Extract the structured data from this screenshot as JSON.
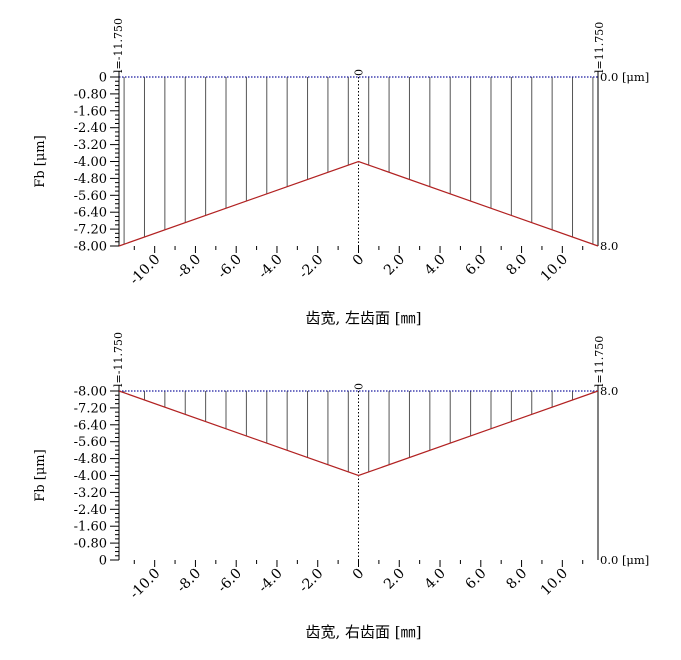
{
  "chart_data": [
    {
      "type": "line",
      "flank": "left",
      "xlabel": "齿宽, 左齿面 [㎜]",
      "ylabel": "Fb [μm]",
      "x_ticks": [
        -10.0,
        -8.0,
        -6.0,
        -4.0,
        -2.0,
        0.0,
        2.0,
        4.0,
        6.0,
        8.0,
        10.0
      ],
      "x_tick_labels": [
        "-10.0",
        "-8.0",
        "-6.0",
        "-4.0",
        "-2.0",
        "0",
        "2.0",
        "4.0",
        "6.0",
        "8.0",
        "10.0"
      ],
      "xlim": [
        -11.75,
        11.75
      ],
      "y_ticks": [
        0,
        -0.8,
        -1.6,
        -2.4,
        -3.2,
        -4.0,
        -4.8,
        -5.6,
        -6.4,
        -7.2,
        -8.0
      ],
      "y_tick_labels": [
        "0",
        "-0.80",
        "-1.60",
        "-2.40",
        "-3.20",
        "-4.00",
        "-4.80",
        "-5.60",
        "-6.40",
        "-7.20",
        "-8.00"
      ],
      "ylim": [
        -8.0,
        0
      ],
      "y_top": 0,
      "line": {
        "x": [
          -11.75,
          0,
          11.75
        ],
        "y": [
          -8.0,
          -4.0,
          -8.0
        ]
      },
      "hatch_x": [
        -11.5,
        -10.5,
        -9.5,
        -8.5,
        -7.5,
        -6.5,
        -5.5,
        -4.5,
        -3.5,
        -2.5,
        -1.5,
        -0.5,
        0.5,
        1.5,
        2.5,
        3.5,
        4.5,
        5.5,
        6.5,
        7.5,
        8.5,
        9.5,
        10.5,
        11.5
      ],
      "top_left_label": "l=-11.750",
      "top_right_label": "l=11.750",
      "center_marker": "0",
      "right_labels": [
        {
          "y": 0,
          "text": "0.0 [μm]"
        },
        {
          "y": -8.0,
          "text": "8.0"
        }
      ],
      "colors": {
        "profile": "#b22222",
        "hatch": "#555555",
        "axis": "#000000",
        "ref_line": "#1a1aa0"
      }
    },
    {
      "type": "line",
      "flank": "right",
      "xlabel": "齿宽, 右齿面 [㎜]",
      "ylabel": "Fb [μm]",
      "x_ticks": [
        -10.0,
        -8.0,
        -6.0,
        -4.0,
        -2.0,
        0.0,
        2.0,
        4.0,
        6.0,
        8.0,
        10.0
      ],
      "x_tick_labels": [
        "-10.0",
        "-8.0",
        "-6.0",
        "-4.0",
        "-2.0",
        "0",
        "2.0",
        "4.0",
        "6.0",
        "8.0",
        "10.0"
      ],
      "xlim": [
        -11.75,
        11.75
      ],
      "y_ticks": [
        -8.0,
        -7.2,
        -6.4,
        -5.6,
        -4.8,
        -4.0,
        -3.2,
        -2.4,
        -1.6,
        -0.8,
        0
      ],
      "y_tick_labels": [
        "-8.00",
        "-7.20",
        "-6.40",
        "-5.60",
        "-4.80",
        "-4.00",
        "-3.20",
        "-2.40",
        "-1.60",
        "-0.80",
        "0"
      ],
      "ylim": [
        0,
        -8.0
      ],
      "y_top": -8.0,
      "line": {
        "x": [
          -11.75,
          0,
          11.75
        ],
        "y": [
          -8.0,
          -4.0,
          -8.0
        ]
      },
      "hatch_x": [
        -11.5,
        -10.5,
        -9.5,
        -8.5,
        -7.5,
        -6.5,
        -5.5,
        -4.5,
        -3.5,
        -2.5,
        -1.5,
        -0.5,
        0.5,
        1.5,
        2.5,
        3.5,
        4.5,
        5.5,
        6.5,
        7.5,
        8.5,
        9.5,
        10.5,
        11.5
      ],
      "top_left_label": "l=-11.750",
      "top_right_label": "l=11.750",
      "center_marker": "0",
      "right_labels": [
        {
          "y": -8.0,
          "text": "8.0"
        },
        {
          "y": 0,
          "text": "0.0 [μm]"
        }
      ],
      "colors": {
        "profile": "#b22222",
        "hatch": "#555555",
        "axis": "#000000",
        "ref_line": "#1a1aa0"
      }
    }
  ]
}
